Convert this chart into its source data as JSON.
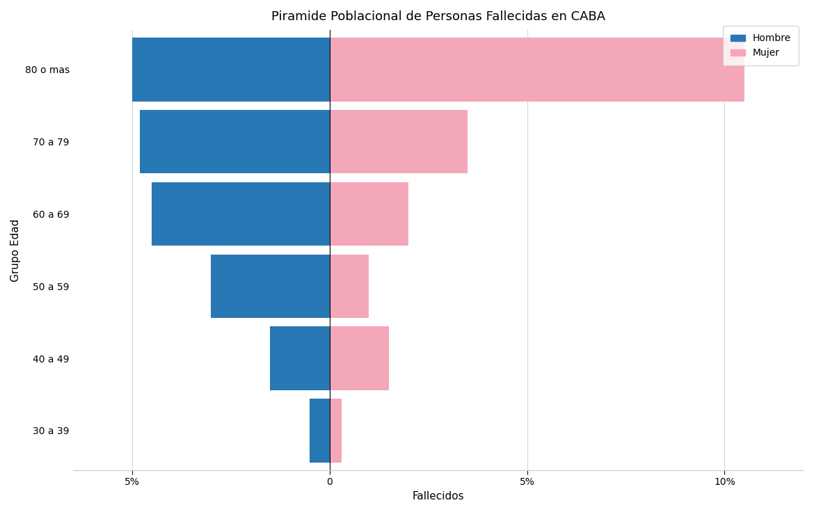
{
  "title": "Piramide Poblacional de Personas Fallecidas en CABA",
  "xlabel": "Fallecidos",
  "ylabel": "Grupo Edad",
  "categories": [
    "30 a 39",
    "40 a 49",
    "50 a 59",
    "60 a 69",
    "70 a 79",
    "80 o mas"
  ],
  "hombre_values": [
    -0.5,
    -1.5,
    -3.0,
    -4.5,
    -4.8,
    -5.0
  ],
  "mujer_values": [
    0.3,
    1.5,
    1.0,
    2.0,
    3.5,
    10.5
  ],
  "hombre_color": "#2878b5",
  "mujer_color": "#f4a7b9",
  "xlim": [
    -6.5,
    12.0
  ],
  "xticks": [
    -5,
    0,
    5,
    10
  ],
  "xticklabels": [
    "5%",
    "0",
    "5%",
    "10%"
  ],
  "legend_labels": [
    "Hombre",
    "Mujer"
  ],
  "background_color": "#ffffff",
  "grid_color": "#d8d8d8",
  "title_fontsize": 13,
  "label_fontsize": 11,
  "tick_fontsize": 10,
  "bar_height": 0.88
}
